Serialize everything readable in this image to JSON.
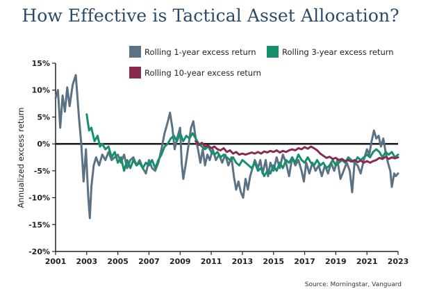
{
  "chart_data": {
    "type": "line",
    "title": "How Effective is Tactical Asset Allocation?",
    "ylabel": "Annualized excess return",
    "xlabel": "",
    "source": "Source: Morningstar, Vanguard",
    "xlim": [
      2001,
      2023
    ],
    "ylim": [
      -20,
      15
    ],
    "xticks": [
      2001,
      2003,
      2005,
      2007,
      2009,
      2011,
      2013,
      2015,
      2017,
      2019,
      2021,
      2023
    ],
    "yticks": [
      15,
      10,
      5,
      0,
      -5,
      -10,
      -15,
      -20
    ],
    "ytick_labels": [
      "15%",
      "10%",
      "5%",
      "0%",
      "-5%",
      "-10%",
      "-15%",
      "-20%"
    ],
    "series": [
      {
        "name": "Rolling 1-year excess return",
        "color": "#5b7285",
        "points": [
          [
            2001.0,
            8.5
          ],
          [
            2001.15,
            10.0
          ],
          [
            2001.3,
            3.0
          ],
          [
            2001.45,
            9.0
          ],
          [
            2001.6,
            6.0
          ],
          [
            2001.75,
            10.5
          ],
          [
            2001.9,
            7.0
          ],
          [
            2002.1,
            11.0
          ],
          [
            2002.3,
            12.8
          ],
          [
            2002.5,
            5.0
          ],
          [
            2002.65,
            0.0
          ],
          [
            2002.8,
            -7.0
          ],
          [
            2002.95,
            -1.0
          ],
          [
            2003.1,
            -10.0
          ],
          [
            2003.2,
            -13.8
          ],
          [
            2003.3,
            -8.0
          ],
          [
            2003.45,
            -4.0
          ],
          [
            2003.6,
            -2.5
          ],
          [
            2003.8,
            -4.0
          ],
          [
            2004.0,
            -2.0
          ],
          [
            2004.2,
            -3.0
          ],
          [
            2004.4,
            -1.5
          ],
          [
            2004.6,
            -3.0
          ],
          [
            2004.8,
            -2.5
          ],
          [
            2005.0,
            -2.0
          ],
          [
            2005.2,
            -3.5
          ],
          [
            2005.4,
            -2.0
          ],
          [
            2005.6,
            -4.5
          ],
          [
            2005.8,
            -3.0
          ],
          [
            2006.0,
            -2.5
          ],
          [
            2006.2,
            -4.0
          ],
          [
            2006.4,
            -3.0
          ],
          [
            2006.6,
            -4.5
          ],
          [
            2006.8,
            -5.5
          ],
          [
            2007.0,
            -3.0
          ],
          [
            2007.2,
            -4.5
          ],
          [
            2007.4,
            -5.0
          ],
          [
            2007.6,
            -3.5
          ],
          [
            2007.8,
            -1.0
          ],
          [
            2008.0,
            2.0
          ],
          [
            2008.2,
            4.0
          ],
          [
            2008.35,
            5.8
          ],
          [
            2008.5,
            3.0
          ],
          [
            2008.65,
            -1.0
          ],
          [
            2008.8,
            1.0
          ],
          [
            2009.0,
            3.0
          ],
          [
            2009.1,
            -3.5
          ],
          [
            2009.2,
            -6.5
          ],
          [
            2009.35,
            -4.0
          ],
          [
            2009.5,
            -1.0
          ],
          [
            2009.7,
            3.0
          ],
          [
            2009.85,
            4.2
          ],
          [
            2010.0,
            1.0
          ],
          [
            2010.15,
            -1.0
          ],
          [
            2010.3,
            -3.5
          ],
          [
            2010.45,
            -1.0
          ],
          [
            2010.6,
            -4.0
          ],
          [
            2010.75,
            -2.0
          ],
          [
            2010.9,
            -3.0
          ],
          [
            2011.1,
            -1.0
          ],
          [
            2011.3,
            -3.0
          ],
          [
            2011.5,
            -2.0
          ],
          [
            2011.7,
            -3.5
          ],
          [
            2011.9,
            -2.0
          ],
          [
            2012.1,
            -4.0
          ],
          [
            2012.3,
            -2.5
          ],
          [
            2012.45,
            -6.0
          ],
          [
            2012.6,
            -8.5
          ],
          [
            2012.75,
            -7.0
          ],
          [
            2012.9,
            -9.0
          ],
          [
            2013.05,
            -10.0
          ],
          [
            2013.2,
            -6.5
          ],
          [
            2013.35,
            -8.5
          ],
          [
            2013.5,
            -6.0
          ],
          [
            2013.65,
            -4.5
          ],
          [
            2013.8,
            -3.0
          ],
          [
            2014.0,
            -4.5
          ],
          [
            2014.15,
            -3.0
          ],
          [
            2014.3,
            -5.5
          ],
          [
            2014.5,
            -3.0
          ],
          [
            2014.65,
            -6.0
          ],
          [
            2014.8,
            -3.5
          ],
          [
            2015.0,
            -5.0
          ],
          [
            2015.2,
            -2.5
          ],
          [
            2015.4,
            -4.5
          ],
          [
            2015.6,
            -2.0
          ],
          [
            2015.8,
            -3.5
          ],
          [
            2016.0,
            -6.0
          ],
          [
            2016.2,
            -2.5
          ],
          [
            2016.4,
            -4.0
          ],
          [
            2016.6,
            -3.0
          ],
          [
            2016.8,
            -5.0
          ],
          [
            2016.95,
            -7.0
          ],
          [
            2017.1,
            -3.5
          ],
          [
            2017.3,
            -5.5
          ],
          [
            2017.5,
            -3.5
          ],
          [
            2017.7,
            -5.0
          ],
          [
            2017.9,
            -4.0
          ],
          [
            2018.1,
            -6.0
          ],
          [
            2018.3,
            -4.0
          ],
          [
            2018.5,
            -5.5
          ],
          [
            2018.7,
            -3.5
          ],
          [
            2018.9,
            -5.0
          ],
          [
            2019.1,
            -3.0
          ],
          [
            2019.3,
            -6.5
          ],
          [
            2019.5,
            -5.0
          ],
          [
            2019.7,
            -3.5
          ],
          [
            2019.9,
            -5.0
          ],
          [
            2020.05,
            -9.0
          ],
          [
            2020.2,
            -3.5
          ],
          [
            2020.4,
            -4.0
          ],
          [
            2020.6,
            -5.5
          ],
          [
            2020.8,
            -3.0
          ],
          [
            2021.0,
            -1.0
          ],
          [
            2021.15,
            -2.0
          ],
          [
            2021.3,
            0.5
          ],
          [
            2021.45,
            2.5
          ],
          [
            2021.6,
            1.0
          ],
          [
            2021.75,
            1.5
          ],
          [
            2021.9,
            -0.5
          ],
          [
            2022.05,
            1.0
          ],
          [
            2022.2,
            -1.5
          ],
          [
            2022.35,
            -3.5
          ],
          [
            2022.5,
            -5.0
          ],
          [
            2022.6,
            -8.0
          ],
          [
            2022.75,
            -5.5
          ],
          [
            2022.85,
            -6.0
          ],
          [
            2023.0,
            -5.5
          ]
        ]
      },
      {
        "name": "Rolling 3-year excess return",
        "color": "#14906e",
        "points": [
          [
            2003.0,
            5.5
          ],
          [
            2003.15,
            2.5
          ],
          [
            2003.3,
            3.0
          ],
          [
            2003.5,
            0.5
          ],
          [
            2003.7,
            1.5
          ],
          [
            2003.85,
            -0.5
          ],
          [
            2004.0,
            0.0
          ],
          [
            2004.2,
            -1.0
          ],
          [
            2004.4,
            -0.5
          ],
          [
            2004.6,
            -2.5
          ],
          [
            2004.8,
            -1.5
          ],
          [
            2005.0,
            -3.5
          ],
          [
            2005.2,
            -2.5
          ],
          [
            2005.4,
            -5.0
          ],
          [
            2005.6,
            -3.0
          ],
          [
            2005.8,
            -4.5
          ],
          [
            2006.0,
            -3.0
          ],
          [
            2006.2,
            -4.0
          ],
          [
            2006.4,
            -3.5
          ],
          [
            2006.6,
            -4.5
          ],
          [
            2006.8,
            -3.5
          ],
          [
            2007.0,
            -4.0
          ],
          [
            2007.2,
            -3.0
          ],
          [
            2007.4,
            -4.5
          ],
          [
            2007.6,
            -3.0
          ],
          [
            2007.8,
            -2.0
          ],
          [
            2008.0,
            -0.5
          ],
          [
            2008.2,
            0.0
          ],
          [
            2008.4,
            1.0
          ],
          [
            2008.6,
            1.5
          ],
          [
            2008.8,
            0.5
          ],
          [
            2009.0,
            2.0
          ],
          [
            2009.2,
            0.5
          ],
          [
            2009.4,
            1.5
          ],
          [
            2009.6,
            1.0
          ],
          [
            2009.8,
            2.0
          ],
          [
            2010.0,
            1.0
          ],
          [
            2010.2,
            0.0
          ],
          [
            2010.4,
            -0.5
          ],
          [
            2010.6,
            -1.0
          ],
          [
            2010.8,
            -0.5
          ],
          [
            2011.0,
            -1.5
          ],
          [
            2011.2,
            -2.0
          ],
          [
            2011.4,
            -1.5
          ],
          [
            2011.6,
            -2.5
          ],
          [
            2011.8,
            -2.0
          ],
          [
            2012.0,
            -2.5
          ],
          [
            2012.2,
            -3.0
          ],
          [
            2012.4,
            -2.5
          ],
          [
            2012.6,
            -3.5
          ],
          [
            2012.8,
            -4.0
          ],
          [
            2013.0,
            -3.0
          ],
          [
            2013.2,
            -3.5
          ],
          [
            2013.4,
            -4.0
          ],
          [
            2013.6,
            -4.5
          ],
          [
            2013.8,
            -3.5
          ],
          [
            2014.0,
            -5.0
          ],
          [
            2014.2,
            -4.5
          ],
          [
            2014.4,
            -6.0
          ],
          [
            2014.6,
            -5.0
          ],
          [
            2014.8,
            -5.5
          ],
          [
            2015.0,
            -4.0
          ],
          [
            2015.2,
            -5.0
          ],
          [
            2015.4,
            -3.5
          ],
          [
            2015.6,
            -4.5
          ],
          [
            2015.8,
            -3.0
          ],
          [
            2016.0,
            -3.5
          ],
          [
            2016.2,
            -2.5
          ],
          [
            2016.4,
            -3.5
          ],
          [
            2016.6,
            -2.0
          ],
          [
            2016.8,
            -3.0
          ],
          [
            2017.0,
            -3.5
          ],
          [
            2017.2,
            -2.5
          ],
          [
            2017.4,
            -3.5
          ],
          [
            2017.6,
            -4.0
          ],
          [
            2017.8,
            -3.0
          ],
          [
            2018.0,
            -4.0
          ],
          [
            2018.2,
            -3.5
          ],
          [
            2018.4,
            -4.5
          ],
          [
            2018.6,
            -4.0
          ],
          [
            2018.8,
            -3.0
          ],
          [
            2019.0,
            -4.0
          ],
          [
            2019.2,
            -3.5
          ],
          [
            2019.4,
            -3.0
          ],
          [
            2019.6,
            -3.5
          ],
          [
            2019.8,
            -2.5
          ],
          [
            2020.0,
            -3.0
          ],
          [
            2020.2,
            -3.5
          ],
          [
            2020.4,
            -2.5
          ],
          [
            2020.6,
            -3.0
          ],
          [
            2020.8,
            -2.5
          ],
          [
            2021.0,
            -2.0
          ],
          [
            2021.2,
            -2.5
          ],
          [
            2021.4,
            -1.5
          ],
          [
            2021.6,
            -1.0
          ],
          [
            2021.8,
            -1.5
          ],
          [
            2022.0,
            -2.5
          ],
          [
            2022.2,
            -1.5
          ],
          [
            2022.4,
            -2.0
          ],
          [
            2022.6,
            -1.5
          ],
          [
            2022.8,
            -2.5
          ],
          [
            2023.0,
            -2.0
          ]
        ]
      },
      {
        "name": "Rolling 10-year excess return",
        "color": "#8a2a4e",
        "points": [
          [
            2010.0,
            0.5
          ],
          [
            2010.2,
            -0.2
          ],
          [
            2010.4,
            0.2
          ],
          [
            2010.6,
            -0.5
          ],
          [
            2010.8,
            -0.3
          ],
          [
            2011.0,
            -0.8
          ],
          [
            2011.2,
            -0.5
          ],
          [
            2011.4,
            -1.0
          ],
          [
            2011.6,
            -1.2
          ],
          [
            2011.8,
            -0.8
          ],
          [
            2012.0,
            -1.5
          ],
          [
            2012.2,
            -1.2
          ],
          [
            2012.4,
            -1.8
          ],
          [
            2012.6,
            -1.5
          ],
          [
            2012.8,
            -2.0
          ],
          [
            2013.0,
            -1.8
          ],
          [
            2013.2,
            -2.0
          ],
          [
            2013.4,
            -1.8
          ],
          [
            2013.6,
            -1.6
          ],
          [
            2013.8,
            -1.8
          ],
          [
            2014.0,
            -1.5
          ],
          [
            2014.2,
            -1.8
          ],
          [
            2014.4,
            -1.4
          ],
          [
            2014.6,
            -1.6
          ],
          [
            2014.8,
            -1.3
          ],
          [
            2015.0,
            -1.5
          ],
          [
            2015.2,
            -1.2
          ],
          [
            2015.4,
            -1.6
          ],
          [
            2015.6,
            -1.3
          ],
          [
            2015.8,
            -1.5
          ],
          [
            2016.0,
            -1.2
          ],
          [
            2016.2,
            -1.0
          ],
          [
            2016.4,
            -1.2
          ],
          [
            2016.6,
            -0.8
          ],
          [
            2016.8,
            -1.0
          ],
          [
            2017.0,
            -0.6
          ],
          [
            2017.2,
            -0.9
          ],
          [
            2017.4,
            -0.5
          ],
          [
            2017.6,
            -0.8
          ],
          [
            2017.8,
            -1.2
          ],
          [
            2018.0,
            -1.8
          ],
          [
            2018.2,
            -2.2
          ],
          [
            2018.4,
            -2.6
          ],
          [
            2018.6,
            -2.4
          ],
          [
            2018.8,
            -2.8
          ],
          [
            2019.0,
            -2.6
          ],
          [
            2019.2,
            -3.0
          ],
          [
            2019.4,
            -2.8
          ],
          [
            2019.6,
            -3.2
          ],
          [
            2019.8,
            -3.0
          ],
          [
            2020.0,
            -3.3
          ],
          [
            2020.2,
            -3.0
          ],
          [
            2020.4,
            -3.4
          ],
          [
            2020.6,
            -3.1
          ],
          [
            2020.8,
            -3.5
          ],
          [
            2021.0,
            -3.2
          ],
          [
            2021.2,
            -3.5
          ],
          [
            2021.4,
            -3.2
          ],
          [
            2021.6,
            -3.0
          ],
          [
            2021.8,
            -2.6
          ],
          [
            2022.0,
            -2.8
          ],
          [
            2022.2,
            -2.4
          ],
          [
            2022.4,
            -2.8
          ],
          [
            2022.6,
            -2.5
          ],
          [
            2022.8,
            -2.7
          ],
          [
            2023.0,
            -2.5
          ]
        ]
      }
    ]
  }
}
